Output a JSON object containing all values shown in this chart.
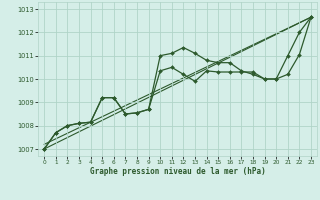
{
  "xlabel": "Graphe pression niveau de la mer (hPa)",
  "xlim": [
    -0.5,
    23.5
  ],
  "ylim": [
    1006.7,
    1013.3
  ],
  "yticks": [
    1007,
    1008,
    1009,
    1010,
    1011,
    1012,
    1013
  ],
  "xticks": [
    0,
    1,
    2,
    3,
    4,
    5,
    6,
    7,
    8,
    9,
    10,
    11,
    12,
    13,
    14,
    15,
    16,
    17,
    18,
    19,
    20,
    21,
    22,
    23
  ],
  "background_color": "#d5eee8",
  "grid_color": "#b0d4c8",
  "line_color": "#2d5a2d",
  "line1_x": [
    0,
    1,
    2,
    3,
    4,
    5,
    6,
    7,
    8,
    9,
    10,
    11,
    12,
    13,
    14,
    15,
    16,
    17,
    18,
    19,
    20,
    21,
    22,
    23
  ],
  "line1_y": [
    1007.0,
    1007.7,
    1008.0,
    1008.1,
    1008.15,
    1009.2,
    1009.2,
    1008.5,
    1008.55,
    1008.7,
    1011.0,
    1011.1,
    1011.35,
    1011.1,
    1010.8,
    1010.7,
    1010.7,
    1010.35,
    1010.2,
    1010.0,
    1010.0,
    1011.0,
    1012.0,
    1012.65
  ],
  "line2_x": [
    0,
    1,
    2,
    3,
    4,
    5,
    6,
    7,
    8,
    9,
    10,
    11,
    12,
    13,
    14,
    15,
    16,
    17,
    18,
    19,
    20,
    21,
    22,
    23
  ],
  "line2_y": [
    1007.0,
    1007.7,
    1008.0,
    1008.1,
    1008.15,
    1009.2,
    1009.2,
    1008.5,
    1008.55,
    1008.7,
    1010.35,
    1010.5,
    1010.2,
    1009.9,
    1010.35,
    1010.3,
    1010.3,
    1010.3,
    1010.3,
    1010.0,
    1010.0,
    1010.2,
    1011.05,
    1012.65
  ],
  "line3_x": [
    0,
    23
  ],
  "line3_y": [
    1007.0,
    1012.65
  ],
  "line4_x": [
    0,
    23
  ],
  "line4_y": [
    1007.2,
    1012.65
  ]
}
